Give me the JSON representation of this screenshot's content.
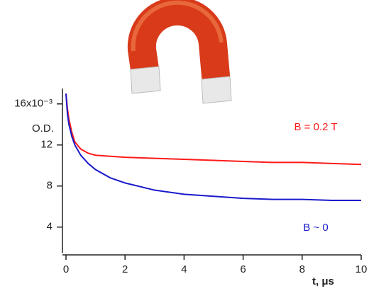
{
  "chart_data": {
    "type": "line",
    "x": [
      0,
      0.05,
      0.1,
      0.2,
      0.3,
      0.5,
      0.75,
      1,
      1.5,
      2,
      3,
      4,
      5,
      6,
      7,
      8,
      9,
      10
    ],
    "series": [
      {
        "name": "B = 0.2 T",
        "color": "#ff1a1a",
        "values": [
          17,
          15.5,
          14.5,
          13.2,
          12.3,
          11.6,
          11.2,
          11.0,
          10.9,
          10.8,
          10.7,
          10.6,
          10.5,
          10.4,
          10.3,
          10.3,
          10.2,
          10.1
        ]
      },
      {
        "name": "B ~ 0",
        "color": "#1a1acc",
        "values": [
          17,
          15,
          14,
          12.8,
          12,
          11,
          10.2,
          9.6,
          8.8,
          8.3,
          7.6,
          7.2,
          7.0,
          6.8,
          6.7,
          6.7,
          6.6,
          6.6
        ]
      }
    ],
    "y_label": "O.D.",
    "x_label": "t, μs",
    "xlim": [
      0,
      10
    ],
    "xticks": [
      0,
      2,
      4,
      6,
      8,
      10
    ],
    "ylim": [
      1.5,
      17.5
    ],
    "yticks": [
      {
        "value": 16,
        "label": "16x10⁻³"
      },
      12,
      8,
      4
    ]
  }
}
